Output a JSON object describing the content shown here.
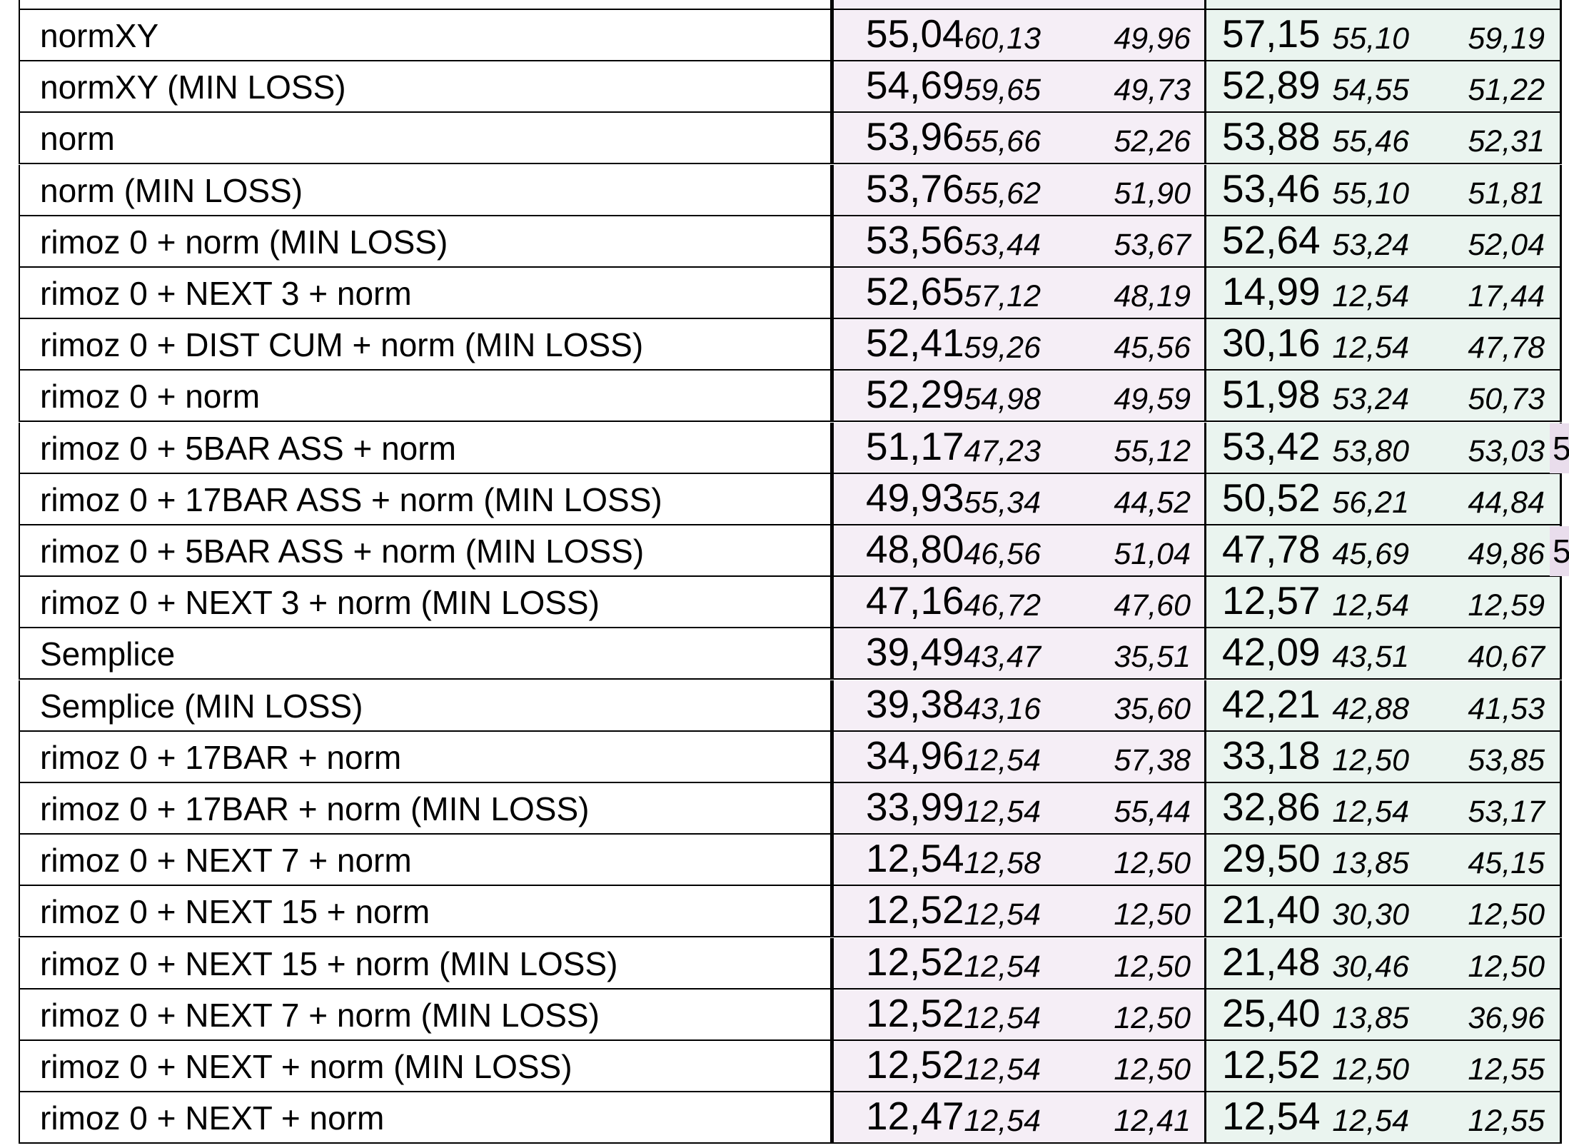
{
  "header_fragment": "( ) , , ,",
  "rows": [
    {
      "name": "normXY",
      "a": "55,04",
      "a1": "60,13",
      "a2": "49,96",
      "b": "57,15",
      "b1": "55,10",
      "b2": "59,19"
    },
    {
      "name": "normXY  (MIN LOSS)",
      "a": "54,69",
      "a1": "59,65",
      "a2": "49,73",
      "b": "52,89",
      "b1": "54,55",
      "b2": "51,22"
    },
    {
      "name": "norm",
      "a": "53,96",
      "a1": "55,66",
      "a2": "52,26",
      "b": "53,88",
      "b1": "55,46",
      "b2": "52,31"
    },
    {
      "name": "norm  (MIN LOSS)",
      "a": "53,76",
      "a1": "55,62",
      "a2": "51,90",
      "b": "53,46",
      "b1": "55,10",
      "b2": "51,81"
    },
    {
      "name": "rimoz 0 + norm  (MIN LOSS)",
      "a": "53,56",
      "a1": "53,44",
      "a2": "53,67",
      "b": "52,64",
      "b1": "53,24",
      "b2": "52,04"
    },
    {
      "name": "rimoz 0 + NEXT 3 + norm",
      "a": "52,65",
      "a1": "57,12",
      "a2": "48,19",
      "b": "14,99",
      "b1": "12,54",
      "b2": "17,44"
    },
    {
      "name": "rimoz 0 + DIST CUM + norm  (MIN LOSS)",
      "a": "52,41",
      "a1": "59,26",
      "a2": "45,56",
      "b": "30,16",
      "b1": "12,54",
      "b2": "47,78"
    },
    {
      "name": "rimoz 0 + norm",
      "a": "52,29",
      "a1": "54,98",
      "a2": "49,59",
      "b": "51,98",
      "b1": "53,24",
      "b2": "50,73"
    },
    {
      "name": "rimoz 0 + 5BAR ASS + norm",
      "a": "51,17",
      "a1": "47,23",
      "a2": "55,12",
      "b": "53,42",
      "b1": "53,80",
      "b2": "53,03",
      "edge": "5"
    },
    {
      "name": "rimoz 0 + 17BAR ASS + norm  (MIN LOSS)",
      "a": "49,93",
      "a1": "55,34",
      "a2": "44,52",
      "b": "50,52",
      "b1": "56,21",
      "b2": "44,84"
    },
    {
      "name": "rimoz 0 + 5BAR ASS + norm  (MIN LOSS)",
      "a": "48,80",
      "a1": "46,56",
      "a2": "51,04",
      "b": "47,78",
      "b1": "45,69",
      "b2": "49,86",
      "edge": "5"
    },
    {
      "name": "rimoz 0 + NEXT 3 + norm  (MIN LOSS)",
      "a": "47,16",
      "a1": "46,72",
      "a2": "47,60",
      "b": "12,57",
      "b1": "12,54",
      "b2": "12,59"
    },
    {
      "name": "Semplice",
      "a": "39,49",
      "a1": "43,47",
      "a2": "35,51",
      "b": "42,09",
      "b1": "43,51",
      "b2": "40,67"
    },
    {
      "name": "Semplice  (MIN LOSS)",
      "a": "39,38",
      "a1": "43,16",
      "a2": "35,60",
      "b": "42,21",
      "b1": "42,88",
      "b2": "41,53"
    },
    {
      "name": "rimoz 0 + 17BAR + norm",
      "a": "34,96",
      "a1": "12,54",
      "a2": "57,38",
      "b": "33,18",
      "b1": "12,50",
      "b2": "53,85"
    },
    {
      "name": "rimoz 0 + 17BAR + norm  (MIN LOSS)",
      "a": "33,99",
      "a1": "12,54",
      "a2": "55,44",
      "b": "32,86",
      "b1": "12,54",
      "b2": "53,17"
    },
    {
      "name": "rimoz 0 + NEXT 7 + norm",
      "a": "12,54",
      "a1": "12,58",
      "a2": "12,50",
      "b": "29,50",
      "b1": "13,85",
      "b2": "45,15"
    },
    {
      "name": "rimoz 0 + NEXT 15 + norm",
      "a": "12,52",
      "a1": "12,54",
      "a2": "12,50",
      "b": "21,40",
      "b1": "30,30",
      "b2": "12,50"
    },
    {
      "name": "rimoz 0 + NEXT 15 + norm  (MIN LOSS)",
      "a": "12,52",
      "a1": "12,54",
      "a2": "12,50",
      "b": "21,48",
      "b1": "30,46",
      "b2": "12,50"
    },
    {
      "name": "rimoz 0 + NEXT 7 + norm  (MIN LOSS)",
      "a": "12,52",
      "a1": "12,54",
      "a2": "12,50",
      "b": "25,40",
      "b1": "13,85",
      "b2": "36,96"
    },
    {
      "name": "rimoz 0 + NEXT + norm  (MIN LOSS)",
      "a": "12,52",
      "a1": "12,54",
      "a2": "12,50",
      "b": "12,52",
      "b1": "12,50",
      "b2": "12,55"
    },
    {
      "name": "rimoz 0 + NEXT + norm",
      "a": "12,47",
      "a1": "12,54",
      "a2": "12,41",
      "b": "12,54",
      "b1": "12,54",
      "b2": "12,55"
    }
  ]
}
